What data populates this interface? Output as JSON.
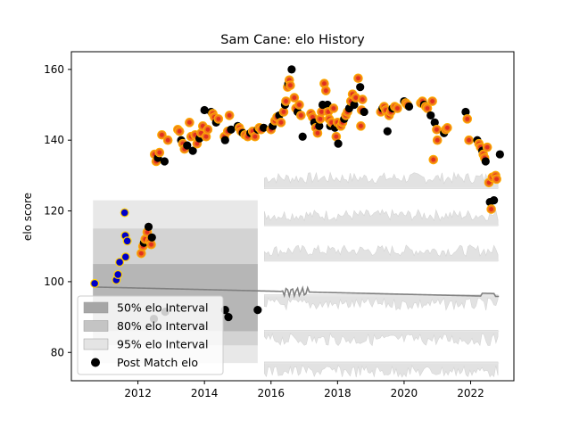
{
  "chart_data": {
    "type": "scatter",
    "title": "Sam Cane: elo History",
    "xlabel": "",
    "ylabel": "elo score",
    "xlim": [
      2010.0,
      2023.3
    ],
    "ylim": [
      72,
      165
    ],
    "x_ticks": [
      2012,
      2014,
      2016,
      2018,
      2020,
      2022
    ],
    "y_ticks": [
      80,
      100,
      120,
      140,
      160
    ],
    "grid": false,
    "legend_position": "lower-left",
    "legend": [
      {
        "label": "50% elo Interval",
        "color": "#a6a6a6"
      },
      {
        "label": "80% elo Interval",
        "color": "#c4c4c4"
      },
      {
        "label": "95% elo Interval",
        "color": "#e4e4e4"
      },
      {
        "label": "Post Match elo",
        "color": "#000000"
      }
    ],
    "colors": {
      "match": "#000000",
      "highlight_orange": "#ffa500",
      "highlight_red": "#e0301e",
      "highlight_blue": "#0000cc",
      "band_line": "#808080"
    },
    "intervals": {
      "x": [
        2010.65,
        2015.6
      ],
      "q50": [
        86,
        105
      ],
      "q80": [
        82,
        115
      ],
      "q95": [
        77,
        123
      ]
    },
    "series": [
      {
        "kind": "post_match",
        "points": [
          [
            2010.7,
            99.5
          ],
          [
            2011.35,
            100.5
          ],
          [
            2011.4,
            102
          ],
          [
            2011.45,
            105.5
          ],
          [
            2011.6,
            119.5
          ],
          [
            2011.62,
            113
          ],
          [
            2011.63,
            107
          ],
          [
            2011.68,
            111.5
          ],
          [
            2012.1,
            108
          ],
          [
            2012.15,
            110
          ],
          [
            2012.18,
            111
          ],
          [
            2012.22,
            112
          ],
          [
            2012.28,
            114
          ],
          [
            2012.32,
            115.5
          ],
          [
            2012.36,
            111.5
          ],
          [
            2012.4,
            110.5
          ],
          [
            2012.42,
            112.5
          ],
          [
            2012.5,
            136
          ],
          [
            2012.55,
            134
          ],
          [
            2012.6,
            135
          ],
          [
            2012.65,
            136.5
          ],
          [
            2012.72,
            141.5
          ],
          [
            2012.8,
            134
          ],
          [
            2012.9,
            140
          ],
          [
            2012.48,
            89.5
          ],
          [
            2012.82,
            91.5
          ],
          [
            2013.2,
            143
          ],
          [
            2013.25,
            142.5
          ],
          [
            2013.3,
            140
          ],
          [
            2013.35,
            139
          ],
          [
            2013.4,
            137.5
          ],
          [
            2013.48,
            138.5
          ],
          [
            2013.55,
            145
          ],
          [
            2013.6,
            141
          ],
          [
            2013.65,
            137
          ],
          [
            2013.72,
            141.5
          ],
          [
            2013.78,
            139
          ],
          [
            2013.85,
            140.5
          ],
          [
            2013.9,
            142
          ],
          [
            2013.95,
            144
          ],
          [
            2014.0,
            148.5
          ],
          [
            2014.05,
            141
          ],
          [
            2014.1,
            143
          ],
          [
            2014.2,
            148
          ],
          [
            2014.25,
            147.5
          ],
          [
            2014.3,
            146.5
          ],
          [
            2014.35,
            145
          ],
          [
            2014.42,
            146
          ],
          [
            2014.6,
            141
          ],
          [
            2014.62,
            140
          ],
          [
            2014.7,
            142.5
          ],
          [
            2014.75,
            147
          ],
          [
            2014.8,
            143
          ],
          [
            2014.62,
            92
          ],
          [
            2014.72,
            90
          ],
          [
            2015.0,
            144
          ],
          [
            2015.05,
            143.5
          ],
          [
            2015.1,
            142.5
          ],
          [
            2015.15,
            142
          ],
          [
            2015.22,
            141.5
          ],
          [
            2015.3,
            141
          ],
          [
            2015.38,
            142
          ],
          [
            2015.45,
            142.5
          ],
          [
            2015.52,
            141
          ],
          [
            2015.6,
            143
          ],
          [
            2015.65,
            143.5
          ],
          [
            2015.7,
            143
          ],
          [
            2015.78,
            143.5
          ],
          [
            2015.6,
            92
          ],
          [
            2016.0,
            143
          ],
          [
            2016.05,
            144
          ],
          [
            2016.12,
            145.5
          ],
          [
            2016.18,
            146.5
          ],
          [
            2016.25,
            147
          ],
          [
            2016.3,
            145
          ],
          [
            2016.38,
            148
          ],
          [
            2016.42,
            150
          ],
          [
            2016.45,
            151
          ],
          [
            2016.5,
            155
          ],
          [
            2016.52,
            156
          ],
          [
            2016.55,
            157
          ],
          [
            2016.58,
            155.5
          ],
          [
            2016.62,
            160
          ],
          [
            2016.7,
            152
          ],
          [
            2016.75,
            149
          ],
          [
            2016.8,
            148
          ],
          [
            2016.85,
            150
          ],
          [
            2016.9,
            147
          ],
          [
            2016.95,
            141
          ],
          [
            2017.2,
            147.5
          ],
          [
            2017.25,
            146.5
          ],
          [
            2017.3,
            145
          ],
          [
            2017.35,
            143.5
          ],
          [
            2017.4,
            142
          ],
          [
            2017.45,
            144
          ],
          [
            2017.48,
            146
          ],
          [
            2017.52,
            148
          ],
          [
            2017.55,
            150
          ],
          [
            2017.6,
            156
          ],
          [
            2017.65,
            154
          ],
          [
            2017.7,
            150
          ],
          [
            2017.72,
            148
          ],
          [
            2017.75,
            146
          ],
          [
            2017.78,
            144
          ],
          [
            2017.82,
            145
          ],
          [
            2017.88,
            149
          ],
          [
            2017.92,
            143.5
          ],
          [
            2017.96,
            141
          ],
          [
            2018.0,
            145
          ],
          [
            2018.02,
            139
          ],
          [
            2018.1,
            144
          ],
          [
            2018.15,
            145
          ],
          [
            2018.2,
            146
          ],
          [
            2018.25,
            147
          ],
          [
            2018.3,
            148
          ],
          [
            2018.35,
            149
          ],
          [
            2018.4,
            151
          ],
          [
            2018.45,
            153
          ],
          [
            2018.5,
            150
          ],
          [
            2018.55,
            152
          ],
          [
            2018.62,
            157.5
          ],
          [
            2018.68,
            155
          ],
          [
            2018.72,
            148.5
          ],
          [
            2018.75,
            151.5
          ],
          [
            2018.8,
            148
          ],
          [
            2018.7,
            144
          ],
          [
            2019.3,
            148
          ],
          [
            2019.35,
            149
          ],
          [
            2019.4,
            149.5
          ],
          [
            2019.45,
            148.5
          ],
          [
            2019.5,
            142.5
          ],
          [
            2019.55,
            147
          ],
          [
            2019.6,
            148
          ],
          [
            2019.65,
            149
          ],
          [
            2019.72,
            149.5
          ],
          [
            2019.8,
            149
          ],
          [
            2020.0,
            151
          ],
          [
            2020.05,
            150.5
          ],
          [
            2020.1,
            150
          ],
          [
            2020.15,
            149.5
          ],
          [
            2020.5,
            150.5
          ],
          [
            2020.55,
            151
          ],
          [
            2020.6,
            150
          ],
          [
            2020.65,
            149.5
          ],
          [
            2020.7,
            149
          ],
          [
            2020.8,
            147
          ],
          [
            2020.85,
            151
          ],
          [
            2020.88,
            134.5
          ],
          [
            2020.92,
            145
          ],
          [
            2020.98,
            143
          ],
          [
            2021.0,
            140
          ],
          [
            2021.2,
            142
          ],
          [
            2021.25,
            143
          ],
          [
            2021.3,
            143.5
          ],
          [
            2021.85,
            148
          ],
          [
            2021.9,
            146
          ],
          [
            2021.95,
            140
          ],
          [
            2022.2,
            140
          ],
          [
            2022.25,
            139
          ],
          [
            2022.3,
            138
          ],
          [
            2022.35,
            137
          ],
          [
            2022.38,
            136
          ],
          [
            2022.42,
            135
          ],
          [
            2022.45,
            134
          ],
          [
            2022.5,
            138
          ],
          [
            2022.55,
            128
          ],
          [
            2022.58,
            122.5
          ],
          [
            2022.62,
            120.5
          ],
          [
            2022.65,
            129.5
          ],
          [
            2022.7,
            123
          ],
          [
            2022.75,
            130
          ],
          [
            2022.78,
            129
          ],
          [
            2022.88,
            136
          ]
        ]
      }
    ],
    "ghost_bands": [
      {
        "center": 126.5,
        "from": 2015.8,
        "to": 2022.85
      },
      {
        "center": 116,
        "from": 2015.8,
        "to": 2022.85
      },
      {
        "center": 106,
        "from": 2015.8,
        "to": 2022.85
      },
      {
        "center": 96,
        "from": 2015.8,
        "to": 2022.85
      },
      {
        "center": 86,
        "from": 2015.8,
        "to": 2022.85
      },
      {
        "center": 77,
        "from": 2015.8,
        "to": 2022.85
      }
    ]
  }
}
